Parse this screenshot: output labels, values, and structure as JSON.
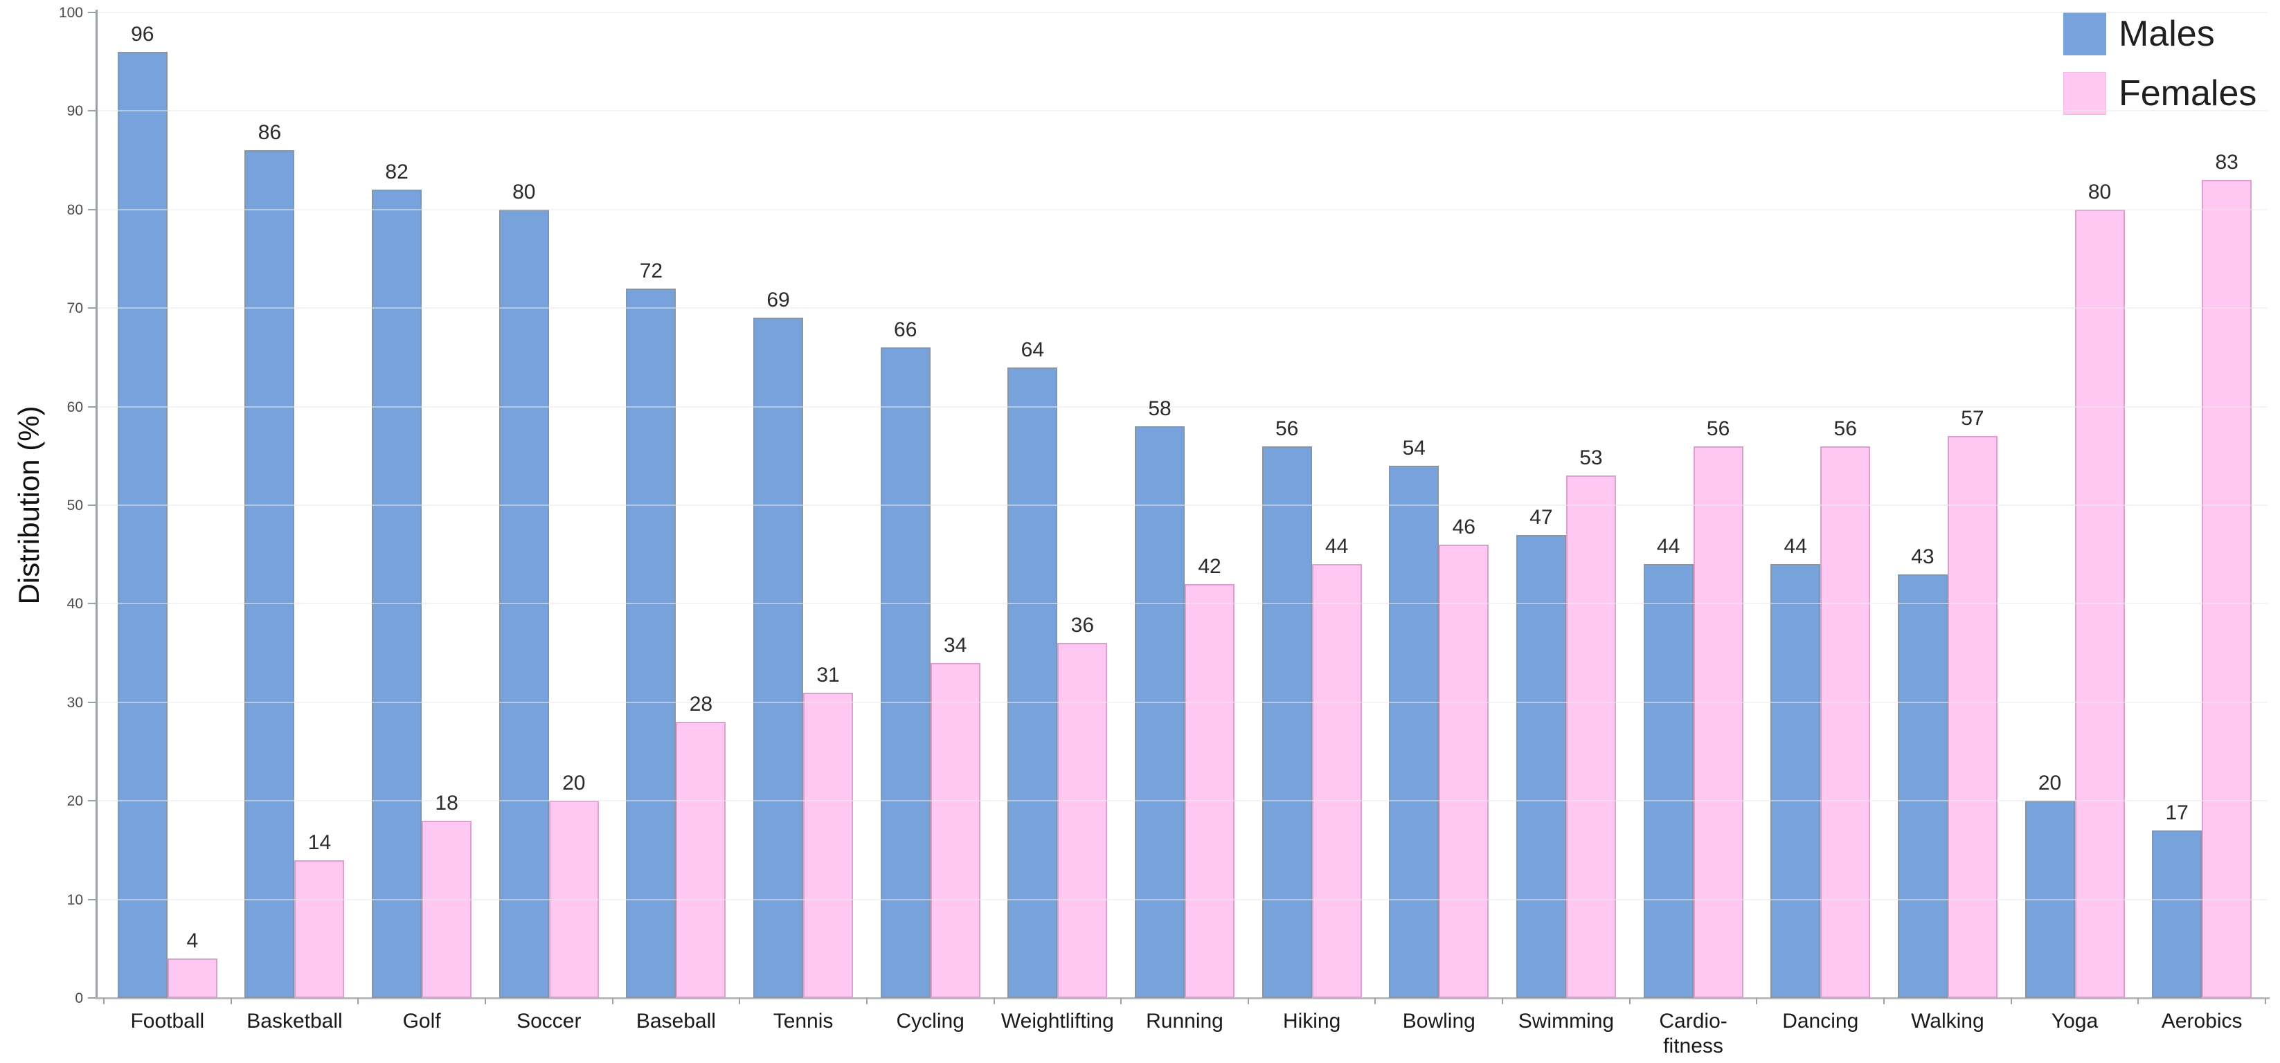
{
  "y_axis_title": "Distribution (%)",
  "legend": {
    "items": [
      {
        "label": "Males",
        "color": "#77A2DB"
      },
      {
        "label": "Females",
        "color": "#FFC8F3"
      }
    ]
  },
  "chart_data": {
    "type": "bar",
    "title": "",
    "xlabel": "",
    "ylabel": "Distribution (%)",
    "ylim": [
      0,
      100
    ],
    "yticks": [
      0,
      10,
      20,
      30,
      40,
      50,
      60,
      70,
      80,
      90,
      100
    ],
    "grid": "very faint horizontal gridlines at each 10",
    "legend_position": "top-right",
    "bar_value_labels": true,
    "categories": [
      "Football",
      "Basketball",
      "Golf",
      "Soccer",
      "Baseball",
      "Tennis",
      "Cycling",
      "Weightlifting",
      "Running",
      "Hiking",
      "Bowling",
      "Swimming",
      "Cardio-\nfitness",
      "Dancing",
      "Walking",
      "Yoga",
      "Aerobics"
    ],
    "series": [
      {
        "name": "Males",
        "color": "#77A2DB",
        "border_color": "#8496AC",
        "values": [
          96,
          86,
          82,
          80,
          72,
          69,
          66,
          64,
          58,
          56,
          54,
          47,
          44,
          44,
          43,
          20,
          17
        ]
      },
      {
        "name": "Females",
        "color": "#FFC8F3",
        "border_color": "#DD9ED0",
        "values": [
          4,
          14,
          18,
          20,
          28,
          31,
          34,
          36,
          42,
          44,
          46,
          53,
          56,
          56,
          57,
          80,
          83
        ]
      }
    ],
    "axis_color": "#9AA0A6",
    "value_label_color": "#2B2B2B"
  }
}
